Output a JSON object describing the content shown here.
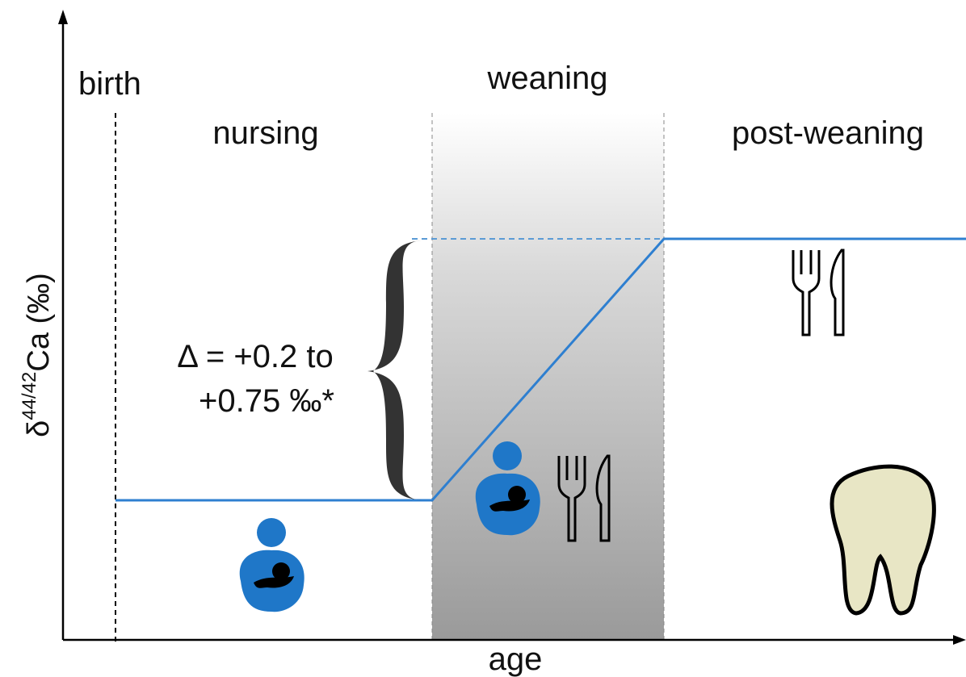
{
  "axes": {
    "y_label": {
      "symbol": "δ",
      "superscript": "44/42",
      "rest": "Ca (‰)"
    },
    "x_label": "age"
  },
  "phases": {
    "birth": "birth",
    "nursing": "nursing",
    "weaning": "weaning",
    "post_weaning": "post-weaning"
  },
  "annotation": {
    "line1": "Δ = +0.2 to",
    "line2": "+0.75 ‰*"
  }
}
